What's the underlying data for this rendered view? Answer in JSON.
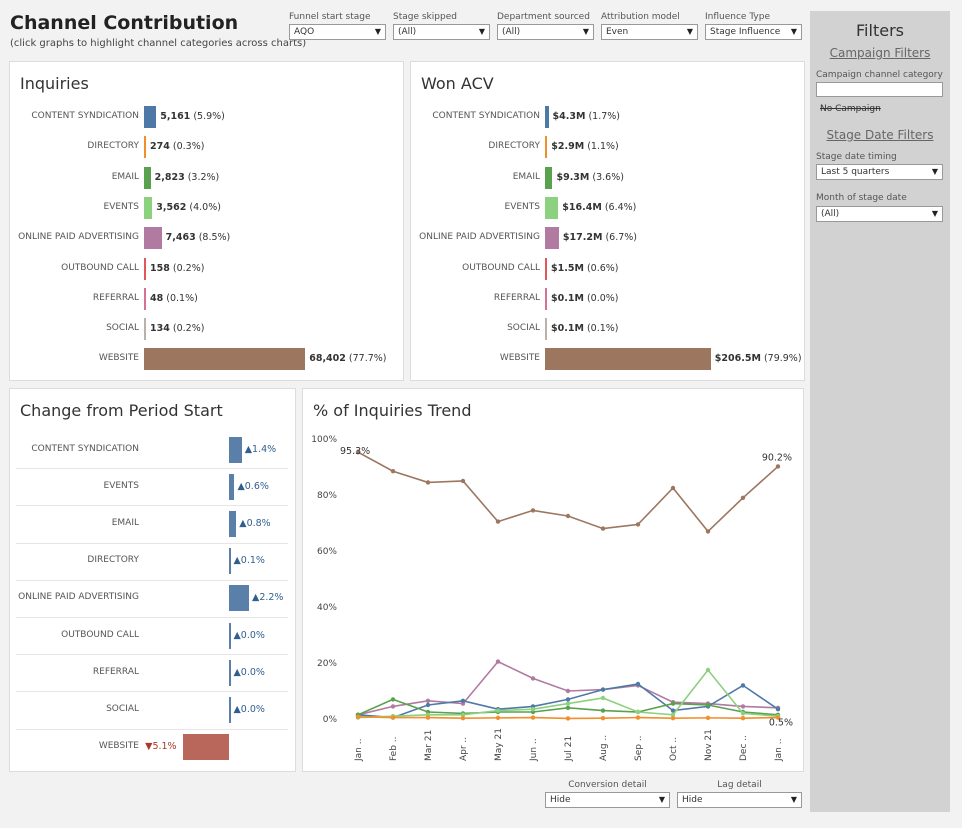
{
  "header": {
    "title": "Channel Contribution",
    "subtitle": "(click graphs to highlight channel categories across charts)"
  },
  "filters": [
    {
      "label": "Funnel start stage",
      "value": "AQO"
    },
    {
      "label": "Stage skipped",
      "value": "(All)"
    },
    {
      "label": "Department sourced",
      "value": "(All)"
    },
    {
      "label": "Attribution model",
      "value": "Even"
    },
    {
      "label": "Influence Type",
      "value": "Stage Influence"
    }
  ],
  "colors": {
    "content_syndication": "#4e79a7",
    "directory": "#f28e2b",
    "email": "#59a14f",
    "events": "#8cd17d",
    "online_paid_advertising": "#b07aa1",
    "website": "#9d7660",
    "change_up": "#5a7fa8",
    "change_down": "#b9675a",
    "down_text": "#a83a2a"
  },
  "inquiries": {
    "title": "Inquiries",
    "rows": [
      {
        "label": "CONTENT SYNDICATION",
        "num": "5,161",
        "pct": "(5.9%)",
        "share": 5.9,
        "color": "#4e79a7"
      },
      {
        "label": "DIRECTORY",
        "num": "274",
        "pct": "(0.3%)",
        "share": 0.3,
        "color": "#f28e2b"
      },
      {
        "label": "EMAIL",
        "num": "2,823",
        "pct": "(3.2%)",
        "share": 3.2,
        "color": "#59a14f"
      },
      {
        "label": "EVENTS",
        "num": "3,562",
        "pct": "(4.0%)",
        "share": 4.0,
        "color": "#8cd17d"
      },
      {
        "label": "ONLINE PAID ADVERTISING",
        "num": "7,463",
        "pct": "(8.5%)",
        "share": 8.5,
        "color": "#b07aa1"
      },
      {
        "label": "OUTBOUND CALL",
        "num": "158",
        "pct": "(0.2%)",
        "share": 0.2,
        "color": "#e15759"
      },
      {
        "label": "REFERRAL",
        "num": "48",
        "pct": "(0.1%)",
        "share": 0.1,
        "color": "#d37295"
      },
      {
        "label": "SOCIAL",
        "num": "134",
        "pct": "(0.2%)",
        "share": 0.2,
        "color": "#bab0ac"
      },
      {
        "label": "WEBSITE",
        "num": "68,402",
        "pct": "(77.7%)",
        "share": 77.7,
        "color": "#9d7660"
      }
    ]
  },
  "won_acv": {
    "title": "Won ACV",
    "rows": [
      {
        "label": "CONTENT SYNDICATION",
        "num": "$4.3M",
        "pct": "(1.7%)",
        "share": 1.7,
        "color": "#4e79a7"
      },
      {
        "label": "DIRECTORY",
        "num": "$2.9M",
        "pct": "(1.1%)",
        "share": 1.1,
        "color": "#f28e2b"
      },
      {
        "label": "EMAIL",
        "num": "$9.3M",
        "pct": "(3.6%)",
        "share": 3.6,
        "color": "#59a14f"
      },
      {
        "label": "EVENTS",
        "num": "$16.4M",
        "pct": "(6.4%)",
        "share": 6.4,
        "color": "#8cd17d"
      },
      {
        "label": "ONLINE PAID ADVERTISING",
        "num": "$17.2M",
        "pct": "(6.7%)",
        "share": 6.7,
        "color": "#b07aa1"
      },
      {
        "label": "OUTBOUND CALL",
        "num": "$1.5M",
        "pct": "(0.6%)",
        "share": 0.6,
        "color": "#e15759"
      },
      {
        "label": "REFERRAL",
        "num": "$0.1M",
        "pct": "(0.0%)",
        "share": 0.0,
        "color": "#d37295"
      },
      {
        "label": "SOCIAL",
        "num": "$0.1M",
        "pct": "(0.1%)",
        "share": 0.1,
        "color": "#bab0ac"
      },
      {
        "label": "WEBSITE",
        "num": "$206.5M",
        "pct": "(79.9%)",
        "share": 79.9,
        "color": "#9d7660"
      }
    ]
  },
  "change": {
    "title": "Change from Period Start",
    "rows": [
      {
        "label": "CONTENT SYNDICATION",
        "value": 1.4,
        "text": "▲1.4%"
      },
      {
        "label": "EVENTS",
        "value": 0.6,
        "text": "▲0.6%"
      },
      {
        "label": "EMAIL",
        "value": 0.8,
        "text": "▲0.8%"
      },
      {
        "label": "DIRECTORY",
        "value": 0.1,
        "text": "▲0.1%"
      },
      {
        "label": "ONLINE PAID ADVERTISING",
        "value": 2.2,
        "text": "▲2.2%"
      },
      {
        "label": "OUTBOUND CALL",
        "value": 0.0,
        "text": "▲0.0%"
      },
      {
        "label": "REFERRAL",
        "value": 0.0,
        "text": "▲0.0%"
      },
      {
        "label": "SOCIAL",
        "value": 0.0,
        "text": "▲0.0%"
      },
      {
        "label": "WEBSITE",
        "value": -5.1,
        "text": "▼5.1%"
      }
    ]
  },
  "chart_data": {
    "type": "line",
    "title": "% of Inquiries Trend",
    "x": [
      "Jan ..",
      "Feb ..",
      "Mar 21",
      "Apr ..",
      "May 21",
      "Jun ..",
      "Jul 21",
      "Aug ..",
      "Sep ..",
      "Oct ..",
      "Nov 21",
      "Dec ..",
      "Jan .."
    ],
    "ylim": [
      0,
      100
    ],
    "yticks": [
      "100%",
      "80%",
      "60%",
      "40%",
      "20%",
      "0%"
    ],
    "annotations": {
      "website_start": "95.3%",
      "website_end": "90.2%",
      "min_end": "0.5%"
    },
    "series": [
      {
        "name": "WEBSITE",
        "color": "#9d7660",
        "values": [
          95.3,
          88.5,
          84.5,
          85.0,
          70.5,
          74.5,
          72.5,
          68.0,
          69.5,
          82.5,
          67.0,
          79.0,
          90.2
        ]
      },
      {
        "name": "ONLINE PAID ADVERTISING",
        "color": "#b07aa1",
        "values": [
          1.5,
          4.5,
          6.5,
          5.5,
          20.5,
          14.5,
          10.0,
          10.5,
          12.0,
          6.0,
          5.5,
          4.5,
          4.0
        ]
      },
      {
        "name": "CONTENT SYNDICATION",
        "color": "#4e79a7",
        "values": [
          1.5,
          0.5,
          5.0,
          6.5,
          3.5,
          4.5,
          7.0,
          10.5,
          12.5,
          3.0,
          4.5,
          12.0,
          3.5
        ]
      },
      {
        "name": "EMAIL",
        "color": "#59a14f",
        "values": [
          1.5,
          7.0,
          2.5,
          2.0,
          2.5,
          2.5,
          4.0,
          3.0,
          2.5,
          5.5,
          5.0,
          2.5,
          1.5
        ]
      },
      {
        "name": "EVENTS",
        "color": "#8cd17d",
        "values": [
          0.5,
          1.0,
          1.5,
          1.5,
          3.0,
          3.5,
          5.5,
          7.5,
          2.5,
          1.5,
          17.5,
          2.0,
          1.0
        ]
      },
      {
        "name": "DIRECTORY",
        "color": "#f28e2b",
        "values": [
          0.8,
          0.5,
          0.5,
          0.3,
          0.4,
          0.5,
          0.2,
          0.3,
          0.5,
          0.3,
          0.4,
          0.3,
          0.5
        ]
      }
    ]
  },
  "sidebar": {
    "title": "Filters",
    "campaign_link": "Campaign Filters",
    "campaign_label": "Campaign channel category",
    "campaign_input": "",
    "no_campaign": "No Campaign",
    "stage_link": "Stage Date Filters",
    "timing_label": "Stage date timing",
    "timing_value": "Last 5 quarters",
    "month_label": "Month of stage date",
    "month_value": "(All)"
  },
  "bottom": {
    "conversion_label": "Conversion detail",
    "conversion_value": "Hide",
    "lag_label": "Lag detail",
    "lag_value": "Hide"
  }
}
